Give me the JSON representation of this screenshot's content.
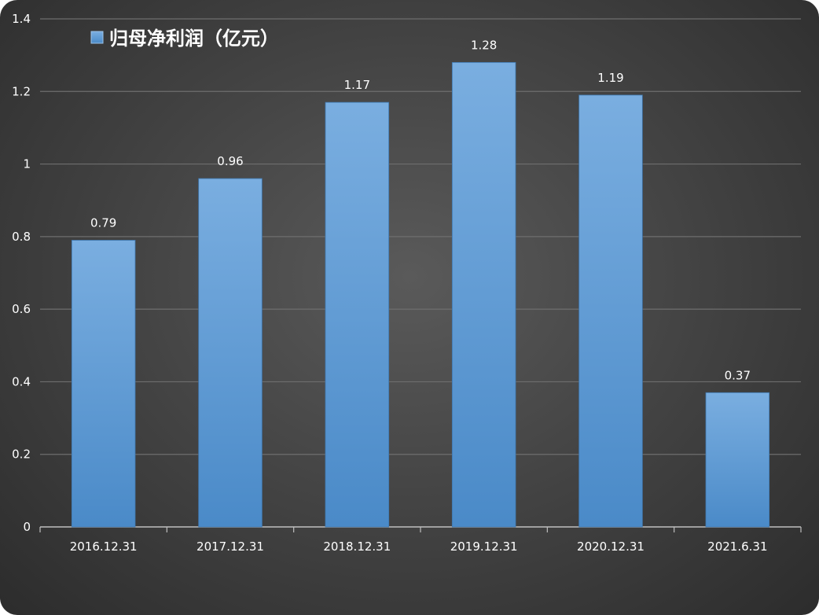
{
  "chart_data": {
    "type": "bar",
    "categories": [
      "2016.12.31",
      "2017.12.31",
      "2018.12.31",
      "2019.12.31",
      "2020.12.31",
      "2021.6.31"
    ],
    "series": [
      {
        "name": "归母净利润（亿元）",
        "values": [
          0.79,
          0.96,
          1.17,
          1.28,
          1.19,
          0.37
        ]
      }
    ],
    "data_labels": [
      "0.79",
      "0.96",
      "1.17",
      "1.28",
      "1.19",
      "0.37"
    ],
    "yticks": [
      "0",
      "0.2",
      "0.4",
      "0.6",
      "0.8",
      "1",
      "1.2",
      "1.4"
    ],
    "ylim": [
      0,
      1.4
    ],
    "grid": true,
    "legend_position": "top-left",
    "colors": {
      "bar": "#5b9bd5",
      "bar_light": "#7aaee0",
      "bar_dark": "#4a8ac8",
      "background": "#484848",
      "grid": "#6e6e6e",
      "axis": "#bfbfbf"
    }
  }
}
